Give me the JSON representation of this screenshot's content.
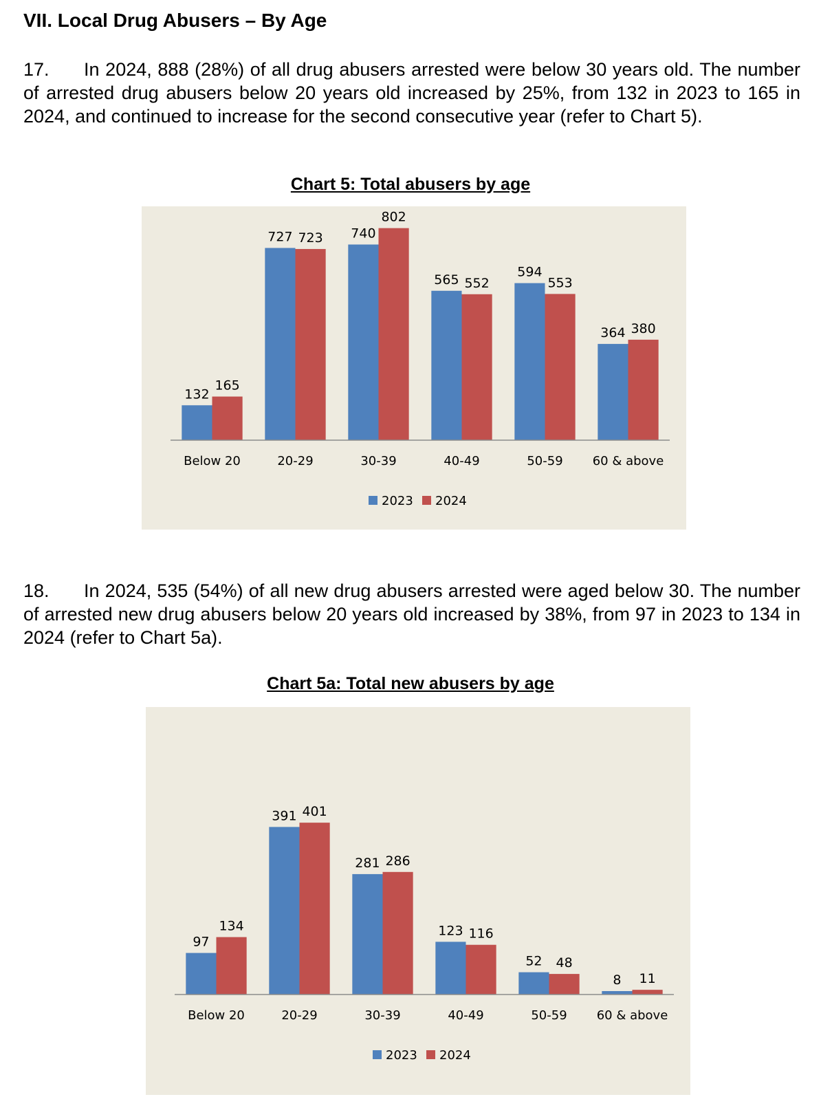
{
  "section_heading": "VII. Local Drug Abusers – By Age",
  "paragraphs": [
    {
      "number": "17.",
      "text": "In 2024, 888 (28%) of all drug abusers arrested were below 30 years old. The number of arrested drug abusers below 20 years old increased by 25%, from 132 in 2023 to 165 in 2024, and continued to increase for the second consecutive year (refer to Chart 5)."
    },
    {
      "number": "18.",
      "text": "In 2024, 535 (54%) of all new drug abusers arrested were aged below 30. The number of arrested new drug abusers below 20 years old increased by 38%, from 97 in 2023 to 134 in 2024 (refer to Chart 5a)."
    }
  ],
  "colors": {
    "series_2023": "#4f81bd",
    "series_2024": "#c0504d",
    "chart_bg": "#eeebe0"
  },
  "chart_data": [
    {
      "type": "bar",
      "title": "Chart 5: Total abusers by age",
      "categories": [
        "Below 20",
        "20-29",
        "30-39",
        "40-49",
        "50-59",
        "60 & above"
      ],
      "series": [
        {
          "name": "2023",
          "values": [
            132,
            727,
            740,
            565,
            594,
            364
          ]
        },
        {
          "name": "2024",
          "values": [
            165,
            723,
            802,
            552,
            553,
            380
          ]
        }
      ],
      "ylim": [
        0,
        900
      ],
      "grid": false,
      "legend": "bottom"
    },
    {
      "type": "bar",
      "title": "Chart 5a: Total new abusers by age",
      "categories": [
        "Below 20",
        "20-29",
        "30-39",
        "40-49",
        "50-59",
        "60 & above"
      ],
      "series": [
        {
          "name": "2023",
          "values": [
            97,
            391,
            281,
            123,
            52,
            8
          ]
        },
        {
          "name": "2024",
          "values": [
            134,
            401,
            286,
            116,
            48,
            11
          ]
        }
      ],
      "ylim": [
        0,
        520
      ],
      "grid": false,
      "legend": "bottom"
    }
  ]
}
